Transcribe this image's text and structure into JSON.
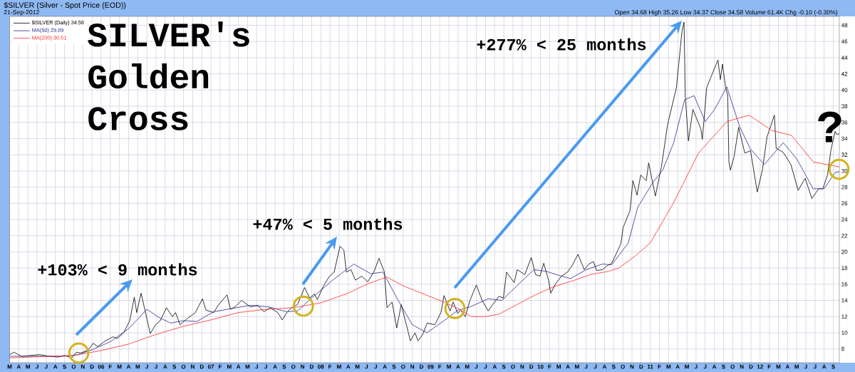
{
  "chart_data": {
    "type": "line",
    "title": "$SILVER (Silver - Spot Price (EOD))",
    "subtitle": "21-Sep-2012",
    "annotations": [
      "Open 34.68 High 35.26 Low 34.37 Close 34.58 Volume 61.4K Chg -0.10 (-0.30%)",
      "SILVER's Golden Cross",
      "+103% < 9 months",
      "+47% < 5 months",
      "+277% < 25 months",
      "?"
    ],
    "xlim": [
      "2005-03-01",
      "2012-09-21"
    ],
    "xticks": [
      {
        "value": "2005-03",
        "label": "M"
      },
      {
        "value": "2005-04",
        "label": "A"
      },
      {
        "value": "2005-05",
        "label": "M"
      },
      {
        "value": "2005-06",
        "label": "J"
      },
      {
        "value": "2005-07",
        "label": "J"
      },
      {
        "value": "2005-08",
        "label": "A"
      },
      {
        "value": "2005-09",
        "label": "S"
      },
      {
        "value": "2005-10",
        "label": "O"
      },
      {
        "value": "2005-11",
        "label": "N"
      },
      {
        "value": "2005-12",
        "label": "D"
      },
      {
        "value": "2006-01",
        "label": "06"
      },
      {
        "value": "2006-02",
        "label": "F"
      },
      {
        "value": "2006-03",
        "label": "M"
      },
      {
        "value": "2006-04",
        "label": "A"
      },
      {
        "value": "2006-05",
        "label": "M"
      },
      {
        "value": "2006-06",
        "label": "J"
      },
      {
        "value": "2006-07",
        "label": "J"
      },
      {
        "value": "2006-08",
        "label": "A"
      },
      {
        "value": "2006-09",
        "label": "S"
      },
      {
        "value": "2006-10",
        "label": "O"
      },
      {
        "value": "2006-11",
        "label": "N"
      },
      {
        "value": "2006-12",
        "label": "D"
      },
      {
        "value": "2007-01",
        "label": "07"
      },
      {
        "value": "2007-02",
        "label": "F"
      },
      {
        "value": "2007-03",
        "label": "M"
      },
      {
        "value": "2007-04",
        "label": "A"
      },
      {
        "value": "2007-05",
        "label": "M"
      },
      {
        "value": "2007-06",
        "label": "J"
      },
      {
        "value": "2007-07",
        "label": "J"
      },
      {
        "value": "2007-08",
        "label": "A"
      },
      {
        "value": "2007-09",
        "label": "S"
      },
      {
        "value": "2007-10",
        "label": "O"
      },
      {
        "value": "2007-11",
        "label": "N"
      },
      {
        "value": "2007-12",
        "label": "D"
      },
      {
        "value": "2008-01",
        "label": "08"
      },
      {
        "value": "2008-02",
        "label": "F"
      },
      {
        "value": "2008-03",
        "label": "M"
      },
      {
        "value": "2008-04",
        "label": "A"
      },
      {
        "value": "2008-05",
        "label": "M"
      },
      {
        "value": "2008-06",
        "label": "J"
      },
      {
        "value": "2008-07",
        "label": "J"
      },
      {
        "value": "2008-08",
        "label": "A"
      },
      {
        "value": "2008-09",
        "label": "S"
      },
      {
        "value": "2008-10",
        "label": "O"
      },
      {
        "value": "2008-11",
        "label": "N"
      },
      {
        "value": "2008-12",
        "label": "D"
      },
      {
        "value": "2009-01",
        "label": "09"
      },
      {
        "value": "2009-02",
        "label": "F"
      },
      {
        "value": "2009-03",
        "label": "M"
      },
      {
        "value": "2009-04",
        "label": "A"
      },
      {
        "value": "2009-05",
        "label": "M"
      },
      {
        "value": "2009-06",
        "label": "J"
      },
      {
        "value": "2009-07",
        "label": "J"
      },
      {
        "value": "2009-08",
        "label": "A"
      },
      {
        "value": "2009-09",
        "label": "S"
      },
      {
        "value": "2009-10",
        "label": "O"
      },
      {
        "value": "2009-11",
        "label": "N"
      },
      {
        "value": "2009-12",
        "label": "D"
      },
      {
        "value": "2010-01",
        "label": "10"
      },
      {
        "value": "2010-02",
        "label": "F"
      },
      {
        "value": "2010-03",
        "label": "M"
      },
      {
        "value": "2010-04",
        "label": "A"
      },
      {
        "value": "2010-05",
        "label": "M"
      },
      {
        "value": "2010-06",
        "label": "J"
      },
      {
        "value": "2010-07",
        "label": "J"
      },
      {
        "value": "2010-08",
        "label": "A"
      },
      {
        "value": "2010-09",
        "label": "S"
      },
      {
        "value": "2010-10",
        "label": "O"
      },
      {
        "value": "2010-11",
        "label": "N"
      },
      {
        "value": "2010-12",
        "label": "D"
      },
      {
        "value": "2011-01",
        "label": "11"
      },
      {
        "value": "2011-02",
        "label": "F"
      },
      {
        "value": "2011-03",
        "label": "M"
      },
      {
        "value": "2011-04",
        "label": "A"
      },
      {
        "value": "2011-05",
        "label": "M"
      },
      {
        "value": "2011-06",
        "label": "J"
      },
      {
        "value": "2011-07",
        "label": "J"
      },
      {
        "value": "2011-08",
        "label": "A"
      },
      {
        "value": "2011-09",
        "label": "S"
      },
      {
        "value": "2011-10",
        "label": "O"
      },
      {
        "value": "2011-11",
        "label": "N"
      },
      {
        "value": "2011-12",
        "label": "D"
      },
      {
        "value": "2012-01",
        "label": "12"
      },
      {
        "value": "2012-02",
        "label": "F"
      },
      {
        "value": "2012-03",
        "label": "M"
      },
      {
        "value": "2012-04",
        "label": "A"
      },
      {
        "value": "2012-05",
        "label": "M"
      },
      {
        "value": "2012-06",
        "label": "J"
      },
      {
        "value": "2012-07",
        "label": "J"
      },
      {
        "value": "2012-08",
        "label": "A"
      },
      {
        "value": "2012-09",
        "label": "S"
      }
    ],
    "ylim": [
      6.3,
      49.1
    ],
    "yticks": [
      8,
      10,
      12,
      14,
      16,
      18,
      20,
      22,
      24,
      26,
      28,
      30,
      32,
      34,
      36,
      38,
      40,
      42,
      44,
      46,
      48
    ],
    "grid": true,
    "legend": "top left",
    "series": [
      {
        "name": "$SILVER (Daily) 34.58",
        "color": "#000000",
        "x": [
          "2005-03-01",
          "2005-03-15",
          "2005-04-10",
          "2005-05-10",
          "2005-06-10",
          "2005-07-10",
          "2005-08-10",
          "2005-09-01",
          "2005-09-25",
          "2005-10-10",
          "2005-10-25",
          "2005-11-20",
          "2005-12-05",
          "2005-12-20",
          "2006-01-15",
          "2006-02-10",
          "2006-02-25",
          "2006-03-15",
          "2006-04-05",
          "2006-04-20",
          "2006-04-28",
          "2006-05-12",
          "2006-05-25",
          "2006-06-12",
          "2006-06-30",
          "2006-07-15",
          "2006-08-05",
          "2006-08-25",
          "2006-09-05",
          "2006-09-20",
          "2006-10-15",
          "2006-11-10",
          "2006-12-03",
          "2006-12-15",
          "2007-01-10",
          "2007-01-25",
          "2007-02-24",
          "2007-03-05",
          "2007-03-20",
          "2007-04-12",
          "2007-05-10",
          "2007-06-05",
          "2007-06-25",
          "2007-07-15",
          "2007-08-10",
          "2007-08-25",
          "2007-09-10",
          "2007-09-25",
          "2007-10-15",
          "2007-11-08",
          "2007-11-25",
          "2007-12-10",
          "2007-12-20",
          "2008-01-10",
          "2008-01-30",
          "2008-02-15",
          "2008-03-04",
          "2008-03-17",
          "2008-03-25",
          "2008-04-10",
          "2008-04-25",
          "2008-05-15",
          "2008-06-05",
          "2008-06-25",
          "2008-07-12",
          "2008-07-30",
          "2008-08-08",
          "2008-08-25",
          "2008-09-10",
          "2008-09-25",
          "2008-10-15",
          "2008-10-25",
          "2008-11-10",
          "2008-11-20",
          "2008-12-05",
          "2008-12-20",
          "2009-01-15",
          "2009-02-05",
          "2009-02-15",
          "2009-03-05",
          "2009-03-15",
          "2009-03-30",
          "2009-04-10",
          "2009-04-25",
          "2009-05-10",
          "2009-06-01",
          "2009-06-20",
          "2009-07-10",
          "2009-07-25",
          "2009-08-15",
          "2009-08-30",
          "2009-09-10",
          "2009-10-05",
          "2009-10-15",
          "2009-11-10",
          "2009-12-01",
          "2009-12-15",
          "2009-12-30",
          "2010-01-12",
          "2010-01-28",
          "2010-02-05",
          "2010-02-20",
          "2010-03-10",
          "2010-03-30",
          "2010-04-15",
          "2010-05-04",
          "2010-05-25",
          "2010-06-10",
          "2010-06-25",
          "2010-07-05",
          "2010-07-25",
          "2010-08-10",
          "2010-08-25",
          "2010-09-10",
          "2010-09-25",
          "2010-10-02",
          "2010-10-25",
          "2010-11-04",
          "2010-11-18",
          "2010-11-30",
          "2010-12-18",
          "2010-12-26",
          "2011-01-18",
          "2011-02-08",
          "2011-02-28",
          "2011-03-27",
          "2011-04-15",
          "2011-04-22",
          "2011-04-26",
          "2011-05-06",
          "2011-05-21",
          "2011-06-17",
          "2011-06-22",
          "2011-07-06",
          "2011-07-19",
          "2011-08-13",
          "2011-08-21",
          "2011-08-28",
          "2011-09-08",
          "2011-09-15",
          "2011-09-19",
          "2011-09-24",
          "2011-10-06",
          "2011-10-21",
          "2011-11-11",
          "2011-11-30",
          "2011-12-22",
          "2012-01-09",
          "2012-01-24",
          "2012-02-18",
          "2012-02-24",
          "2012-03-17",
          "2012-04-12",
          "2012-05-06",
          "2012-05-29",
          "2012-06-21",
          "2012-07-13",
          "2012-07-27",
          "2012-08-12",
          "2012-08-24",
          "2012-09-07",
          "2012-09-12",
          "2012-09-21"
        ],
        "values": [
          7.3,
          7.6,
          7.1,
          7.2,
          7.3,
          7.1,
          7.0,
          7.2,
          6.9,
          7.6,
          7.5,
          7.9,
          8.7,
          8.3,
          9.0,
          9.5,
          9.3,
          10.0,
          11.5,
          14.4,
          12.5,
          14.9,
          12.8,
          9.9,
          11.0,
          11.5,
          13.1,
          12.0,
          12.5,
          11.0,
          11.8,
          12.5,
          14.2,
          12.8,
          12.5,
          13.4,
          14.7,
          12.9,
          13.2,
          14.0,
          13.2,
          13.4,
          12.6,
          13.1,
          12.5,
          11.6,
          12.5,
          13.1,
          13.5,
          15.6,
          14.3,
          14.8,
          14.1,
          15.8,
          17.0,
          17.5,
          20.7,
          20.2,
          17.5,
          17.8,
          16.5,
          17.0,
          16.3,
          17.5,
          19.2,
          17.5,
          13.1,
          13.8,
          10.6,
          13.5,
          10.5,
          9.0,
          10.0,
          9.0,
          9.8,
          11.2,
          11.0,
          12.5,
          14.6,
          12.7,
          13.8,
          12.4,
          12.8,
          12.0,
          14.0,
          15.9,
          14.0,
          12.7,
          13.5,
          14.5,
          14.3,
          17.5,
          16.2,
          17.8,
          17.2,
          19.3,
          17.2,
          17.0,
          18.6,
          16.5,
          14.9,
          16.0,
          17.0,
          17.5,
          18.3,
          19.7,
          17.8,
          18.5,
          18.8,
          17.7,
          17.8,
          18.3,
          18.6,
          19.8,
          21.0,
          23.0,
          25.1,
          28.8,
          27.0,
          29.5,
          28.8,
          31.0,
          26.9,
          30.6,
          35.7,
          40.3,
          47.2,
          48.4,
          39.3,
          33.7,
          37.6,
          35.2,
          33.9,
          40.3,
          41.5,
          43.7,
          41.3,
          43.2,
          40.3,
          39.4,
          31.1,
          30.1,
          31.8,
          35.4,
          32.2,
          32.5,
          27.4,
          30.2,
          34.2,
          36.9,
          32.8,
          32.3,
          30.8,
          27.6,
          29.1,
          26.6,
          27.8,
          27.8,
          29.5,
          32.7,
          34.9,
          34.5,
          34.6
        ]
      },
      {
        "name": "MA(50) 29.89",
        "color": "#2a2a8a",
        "x": [
          "2005-03-01",
          "2005-06-01",
          "2005-09-01",
          "2005-10-15",
          "2005-12-01",
          "2006-02-01",
          "2006-04-01",
          "2006-06-01",
          "2006-07-15",
          "2006-08-20",
          "2006-10-01",
          "2006-11-15",
          "2007-01-10",
          "2007-03-10",
          "2007-05-10",
          "2007-07-10",
          "2007-09-10",
          "2007-10-15",
          "2007-12-01",
          "2008-02-10",
          "2008-04-19",
          "2008-06-15",
          "2008-07-25",
          "2008-09-15",
          "2008-11-01",
          "2008-12-19",
          "2009-02-15",
          "2009-04-01",
          "2009-05-10",
          "2009-07-10",
          "2009-08-25",
          "2009-10-25",
          "2009-12-10",
          "2010-01-20",
          "2010-03-10",
          "2010-04-10",
          "2010-06-01",
          "2010-07-25",
          "2010-08-25",
          "2010-10-19",
          "2010-11-20",
          "2011-01-10",
          "2011-02-12",
          "2011-03-18",
          "2011-04-24",
          "2011-05-25",
          "2011-07-01",
          "2011-08-02",
          "2011-09-12",
          "2011-10-24",
          "2011-11-30",
          "2012-01-15",
          "2012-03-17",
          "2012-05-01",
          "2012-06-25",
          "2012-07-31",
          "2012-09-07",
          "2012-09-21"
        ],
        "values": [
          7.1,
          7.1,
          7.1,
          7.3,
          7.9,
          8.9,
          10.5,
          12.9,
          11.8,
          11.2,
          11.5,
          11.4,
          12.6,
          13.0,
          13.4,
          13.2,
          12.6,
          12.7,
          14.3,
          16.5,
          18.5,
          17.3,
          17.5,
          14.0,
          11.0,
          10.0,
          11.5,
          12.8,
          13.2,
          14.2,
          14.0,
          16.2,
          17.8,
          17.6,
          17.0,
          16.7,
          17.8,
          18.5,
          18.4,
          21.1,
          25.5,
          28.6,
          30.1,
          33.5,
          38.8,
          39.3,
          36.1,
          37.6,
          40.4,
          35.5,
          32.7,
          30.8,
          33.5,
          31.5,
          27.8,
          27.8,
          29.8,
          29.9
        ]
      },
      {
        "name": "MA(200) 30.51",
        "color": "#ff2a2a",
        "x": [
          "2005-03-01",
          "2005-10-01",
          "2006-01-01",
          "2006-04-01",
          "2006-07-01",
          "2006-10-01",
          "2007-01-01",
          "2007-04-01",
          "2007-07-01",
          "2007-10-01",
          "2008-01-01",
          "2008-04-01",
          "2008-06-01",
          "2008-08-07",
          "2008-10-01",
          "2008-12-01",
          "2009-02-01",
          "2009-04-01",
          "2009-05-15",
          "2009-07-01",
          "2009-08-15",
          "2009-10-15",
          "2009-12-15",
          "2010-02-15",
          "2010-04-15",
          "2010-06-15",
          "2010-08-15",
          "2010-09-18",
          "2010-11-12",
          "2011-01-01",
          "2011-03-18",
          "2011-06-09",
          "2011-09-12",
          "2011-11-25",
          "2012-02-10",
          "2012-04-14",
          "2012-06-26",
          "2012-09-21"
        ],
        "values": [
          6.9,
          7.2,
          7.8,
          8.6,
          9.8,
          10.8,
          11.6,
          12.5,
          12.9,
          13.1,
          13.7,
          14.9,
          16.0,
          16.9,
          15.8,
          14.9,
          14.0,
          13.0,
          12.0,
          12.0,
          12.3,
          13.5,
          14.7,
          15.7,
          16.4,
          17.2,
          17.6,
          18.0,
          19.5,
          21.1,
          26.1,
          32.2,
          36.1,
          36.9,
          35.0,
          34.4,
          31.1,
          30.5
        ]
      },
      {
        "type": "scatter",
        "marker": "circle",
        "color": "#d2b21c",
        "x": [
          "2005-10-18",
          "2007-11-04",
          "2009-03-21",
          "2012-09-20"
        ],
        "values": [
          7.5,
          13.3,
          13.0,
          30.2
        ]
      }
    ]
  }
}
